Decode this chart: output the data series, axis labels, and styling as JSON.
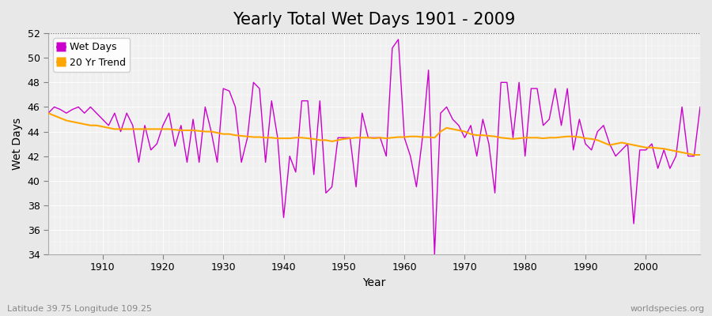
{
  "title": "Yearly Total Wet Days 1901 - 2009",
  "xlabel": "Year",
  "ylabel": "Wet Days",
  "years": [
    1901,
    1902,
    1903,
    1904,
    1905,
    1906,
    1907,
    1908,
    1909,
    1910,
    1911,
    1912,
    1913,
    1914,
    1915,
    1916,
    1917,
    1918,
    1919,
    1920,
    1921,
    1922,
    1923,
    1924,
    1925,
    1926,
    1927,
    1928,
    1929,
    1930,
    1931,
    1932,
    1933,
    1934,
    1935,
    1936,
    1937,
    1938,
    1939,
    1940,
    1941,
    1942,
    1943,
    1944,
    1945,
    1946,
    1947,
    1948,
    1949,
    1950,
    1951,
    1952,
    1953,
    1954,
    1955,
    1956,
    1957,
    1958,
    1959,
    1960,
    1961,
    1962,
    1963,
    1964,
    1965,
    1966,
    1967,
    1968,
    1969,
    1970,
    1971,
    1972,
    1973,
    1974,
    1975,
    1976,
    1977,
    1978,
    1979,
    1980,
    1981,
    1982,
    1983,
    1984,
    1985,
    1986,
    1987,
    1988,
    1989,
    1990,
    1991,
    1992,
    1993,
    1994,
    1995,
    1996,
    1997,
    1998,
    1999,
    2000,
    2001,
    2002,
    2003,
    2004,
    2005,
    2006,
    2007,
    2008,
    2009
  ],
  "wet_days": [
    45.5,
    46.0,
    45.8,
    45.5,
    45.8,
    46.0,
    45.5,
    46.0,
    45.5,
    45.0,
    44.5,
    45.5,
    44.0,
    45.5,
    44.5,
    41.5,
    44.5,
    42.5,
    43.0,
    44.5,
    45.5,
    42.8,
    44.5,
    41.5,
    45.0,
    41.5,
    46.0,
    44.0,
    41.5,
    47.5,
    47.3,
    46.0,
    41.5,
    43.5,
    48.0,
    47.5,
    41.5,
    46.5,
    43.5,
    37.0,
    42.0,
    40.7,
    46.5,
    46.5,
    40.5,
    46.5,
    39.0,
    39.5,
    43.5,
    43.5,
    43.5,
    39.5,
    45.5,
    43.5,
    43.5,
    43.5,
    42.0,
    50.8,
    51.5,
    43.5,
    42.0,
    39.5,
    43.5,
    49.0,
    34.0,
    45.5,
    46.0,
    45.0,
    44.5,
    43.5,
    44.5,
    42.0,
    45.0,
    43.0,
    39.0,
    48.0,
    48.0,
    43.5,
    48.0,
    42.0,
    47.5,
    47.5,
    44.5,
    45.0,
    47.5,
    44.5,
    47.5,
    42.5,
    45.0,
    43.0,
    42.5,
    44.0,
    44.5,
    43.0,
    42.0,
    42.5,
    43.0,
    36.5,
    42.5,
    42.5,
    43.0,
    41.0,
    42.5,
    41.0,
    42.0,
    46.0,
    42.0,
    42.0,
    46.0
  ],
  "trend_values": [
    45.5,
    45.3,
    45.1,
    44.9,
    44.8,
    44.7,
    44.6,
    44.5,
    44.5,
    44.4,
    44.3,
    44.2,
    44.2,
    44.2,
    44.2,
    44.2,
    44.2,
    44.2,
    44.2,
    44.2,
    44.2,
    44.15,
    44.1,
    44.1,
    44.1,
    44.05,
    44.0,
    44.0,
    43.9,
    43.8,
    43.8,
    43.7,
    43.65,
    43.6,
    43.55,
    43.55,
    43.5,
    43.5,
    43.45,
    43.45,
    43.45,
    43.5,
    43.5,
    43.45,
    43.4,
    43.3,
    43.3,
    43.2,
    43.3,
    43.4,
    43.45,
    43.5,
    43.5,
    43.5,
    43.45,
    43.5,
    43.45,
    43.5,
    43.55,
    43.55,
    43.6,
    43.6,
    43.55,
    43.55,
    43.5,
    44.0,
    44.3,
    44.2,
    44.1,
    44.0,
    43.8,
    43.7,
    43.7,
    43.65,
    43.6,
    43.5,
    43.45,
    43.4,
    43.45,
    43.5,
    43.5,
    43.5,
    43.45,
    43.5,
    43.5,
    43.55,
    43.6,
    43.6,
    43.55,
    43.45,
    43.4,
    43.3,
    43.1,
    42.9,
    43.0,
    43.1,
    43.0,
    42.9,
    42.8,
    42.7,
    42.7,
    42.65,
    42.6,
    42.5,
    42.4,
    42.3,
    42.2,
    42.1,
    42.1
  ],
  "wet_days_color": "#CC00CC",
  "trend_color": "#FFA500",
  "plot_bg_color": "#F0F0F0",
  "fig_bg_color": "#E8E8E8",
  "grid_color": "#FFFFFF",
  "ylim": [
    34,
    52
  ],
  "yticks": [
    34,
    36,
    38,
    40,
    42,
    44,
    46,
    48,
    50,
    52
  ],
  "xticks": [
    1910,
    1920,
    1930,
    1940,
    1950,
    1960,
    1970,
    1980,
    1990,
    2000
  ],
  "xlim_left": 1901,
  "xlim_right": 2009,
  "bottom_left_text": "Latitude 39.75 Longitude 109.25",
  "bottom_right_text": "worldspecies.org",
  "title_fontsize": 15,
  "label_fontsize": 10,
  "tick_fontsize": 9,
  "legend_fontsize": 9
}
